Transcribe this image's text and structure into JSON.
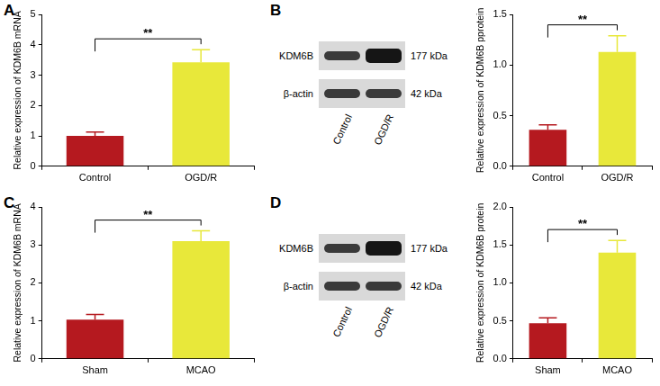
{
  "chart_data": [
    {
      "panel": "A",
      "type": "bar",
      "categories": [
        "Control",
        "OGD/R"
      ],
      "values": [
        1.0,
        3.42
      ],
      "errors": [
        0.13,
        0.42
      ],
      "colors": [
        "#b5191f",
        "#e8e83a"
      ],
      "y_label": "Relative expression of KDM6B mRNA",
      "ylim": [
        0,
        5
      ],
      "yticks": [
        0,
        1,
        2,
        3,
        4,
        5
      ],
      "grid": false,
      "annotation": "**"
    },
    {
      "panel": "B",
      "type": "bar",
      "categories": [
        "Control",
        "OGD/R"
      ],
      "values": [
        0.36,
        1.13
      ],
      "errors": [
        0.05,
        0.16
      ],
      "colors": [
        "#b5191f",
        "#e8e83a"
      ],
      "y_label": "Relative expression of KDM6B pprotein",
      "ylim": [
        0,
        1.5
      ],
      "yticks": [
        {
          "value": 0,
          "label": "0.0"
        },
        0.5,
        {
          "value": 1,
          "label": "1.0"
        },
        1.5
      ],
      "grid": false,
      "annotation": "**",
      "blot": {
        "rows": [
          {
            "name": "KDM6B",
            "size": "177 kDa"
          },
          {
            "name": "β-actin",
            "size": "42 kDa"
          }
        ],
        "lanes": [
          "Control",
          "OGD/R"
        ]
      }
    },
    {
      "panel": "C",
      "type": "bar",
      "categories": [
        "Sham",
        "MCAO"
      ],
      "values": [
        1.03,
        3.1
      ],
      "errors": [
        0.14,
        0.27
      ],
      "colors": [
        "#b5191f",
        "#e8e83a"
      ],
      "y_label": "Relative expression of KDM6B mRNA",
      "ylim": [
        0,
        4
      ],
      "yticks": [
        0,
        1,
        2,
        3,
        4
      ],
      "grid": false,
      "annotation": "**"
    },
    {
      "panel": "D",
      "type": "bar",
      "categories": [
        "Sham",
        "MCAO"
      ],
      "values": [
        0.47,
        1.4
      ],
      "errors": [
        0.07,
        0.16
      ],
      "colors": [
        "#b5191f",
        "#e8e83a"
      ],
      "y_label": "Relative expression of KDM6B protein",
      "ylim": [
        0,
        2
      ],
      "yticks": [
        {
          "value": 0,
          "label": "0.0"
        },
        {
          "value": 0.5,
          "label": "0.5"
        },
        {
          "value": 1,
          "label": "1.0"
        },
        {
          "value": 1.5,
          "label": "1.5"
        },
        {
          "value": 2,
          "label": "2.0"
        }
      ],
      "grid": false,
      "annotation": "**",
      "blot": {
        "rows": [
          {
            "name": "KDM6B",
            "size": "177 kDa"
          },
          {
            "name": "β-actin",
            "size": "42 kDa"
          }
        ],
        "lanes": [
          "Control",
          "OGD/R"
        ]
      }
    }
  ]
}
